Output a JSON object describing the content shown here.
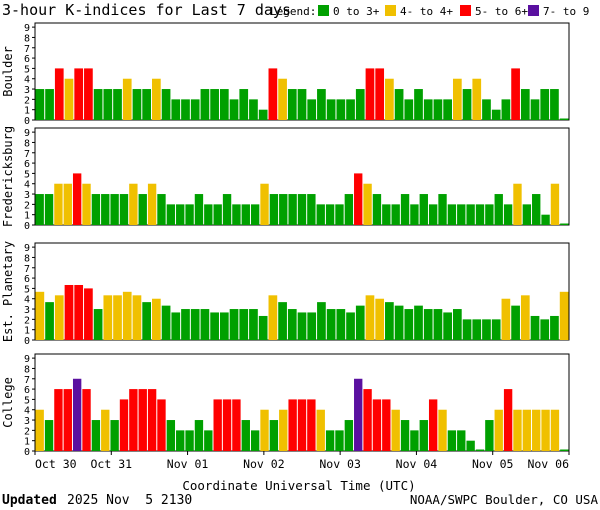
{
  "colors": {
    "low": "#00a000",
    "active": "#f0c000",
    "storm": "#ff0000",
    "severe": "#5a10a0",
    "grid": "#000000",
    "background": "#ffffff"
  },
  "chart_data": {
    "type": "bar",
    "title": "3-hour K-indices for Last 7 days",
    "legend_label": "Legend:",
    "legend": [
      {
        "label": "0 to 3+",
        "color_key": "low"
      },
      {
        "label": "4- to 4+",
        "color_key": "active"
      },
      {
        "label": "5- to 6+",
        "color_key": "storm"
      },
      {
        "label": "7- to 9",
        "color_key": "severe"
      }
    ],
    "legend_placement": "top-right",
    "xlabel": "Coordinate Universal Time (UTC)",
    "xticks": [
      "Oct 30",
      "Oct 31",
      "Nov 01",
      "Nov 02",
      "Nov 03",
      "Nov 04",
      "Nov 05",
      "Nov 06"
    ],
    "ylim": [
      0,
      9
    ],
    "yticks": [
      0,
      1,
      2,
      3,
      4,
      5,
      6,
      7,
      8,
      9
    ],
    "grid": false,
    "color_rule": "0-3.x low, 4.x active, 5-6.x storm, 7-9 severe",
    "panels": [
      {
        "name": "Boulder",
        "values": [
          3,
          3,
          5,
          4,
          5,
          5,
          3,
          3,
          3,
          4,
          3,
          3,
          4,
          3,
          2,
          2,
          2,
          3,
          3,
          3,
          2,
          3,
          2,
          1,
          5,
          4,
          3,
          3,
          2,
          3,
          2,
          2,
          2,
          3,
          5,
          5,
          4,
          3,
          2,
          3,
          2,
          2,
          2,
          4,
          3,
          4,
          2,
          1,
          2,
          5,
          3,
          2,
          3,
          3,
          0
        ]
      },
      {
        "name": "Fredericksburg",
        "values": [
          3,
          3,
          4,
          4,
          5,
          4,
          3,
          3,
          3,
          3,
          4,
          3,
          4,
          3,
          2,
          2,
          2,
          3,
          2,
          2,
          3,
          2,
          2,
          2,
          4,
          3,
          3,
          3,
          3,
          3,
          2,
          2,
          2,
          3,
          5,
          4,
          3,
          2,
          2,
          3,
          2,
          3,
          2,
          3,
          2,
          2,
          2,
          2,
          2,
          3,
          2,
          4,
          2,
          3,
          1,
          4,
          0
        ]
      },
      {
        "name": "Est. Planetary",
        "values": [
          4.67,
          3.67,
          4.33,
          5.33,
          5.33,
          5,
          3,
          4.33,
          4.33,
          4.67,
          4.33,
          3.67,
          4,
          3.33,
          2.67,
          3,
          3,
          3,
          2.67,
          2.67,
          3,
          3,
          3,
          2.33,
          4.33,
          3.67,
          3,
          2.67,
          2.67,
          3.67,
          3,
          3,
          2.67,
          3.33,
          4.33,
          4,
          3.67,
          3.33,
          3,
          3.33,
          3,
          3,
          2.67,
          3,
          2,
          2,
          2,
          2,
          4,
          3.33,
          4.33,
          2.33,
          2,
          2.33,
          4.67
        ]
      },
      {
        "name": "College",
        "values": [
          4,
          3,
          6,
          6,
          7,
          6,
          3,
          4,
          3,
          5,
          6,
          6,
          6,
          5,
          3,
          2,
          2,
          3,
          2,
          5,
          5,
          5,
          3,
          2,
          4,
          3,
          4,
          5,
          5,
          5,
          4,
          2,
          2,
          3,
          7,
          6,
          5,
          5,
          4,
          3,
          2,
          3,
          5,
          4,
          2,
          2,
          1,
          0,
          3,
          4,
          6,
          4,
          4,
          4,
          4,
          4,
          0
        ]
      }
    ]
  },
  "footer": {
    "updated_label": "Updated",
    "updated_value": "2025 Nov  5 2130",
    "credit": "NOAA/SWPC Boulder, CO USA"
  }
}
